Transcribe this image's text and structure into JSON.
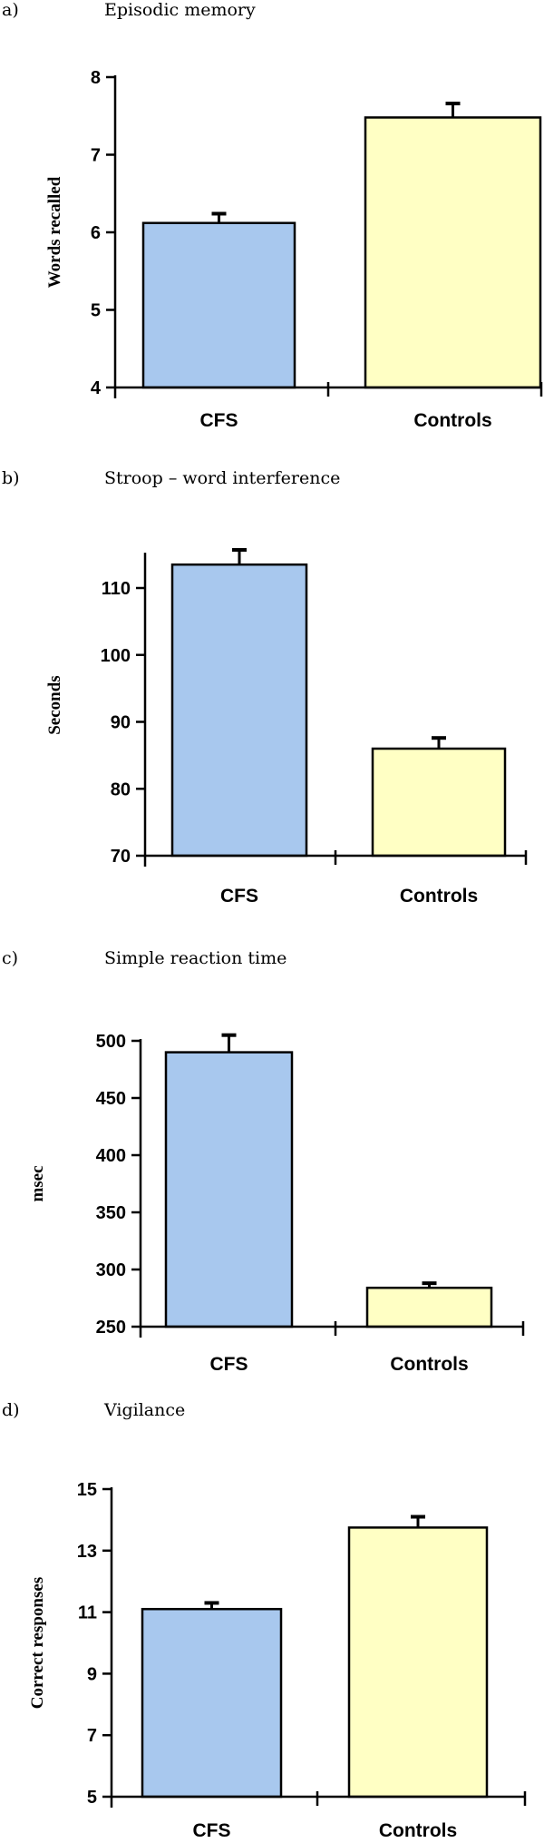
{
  "chart_data": [
    {
      "type": "bar",
      "panel_letter": "a)",
      "title": "Episodic memory",
      "ylabel": "Words recalled",
      "categories": [
        "CFS",
        "Controls"
      ],
      "values": [
        6.12,
        7.48
      ],
      "errors": [
        0.12,
        0.18
      ],
      "ylim": [
        4,
        8
      ],
      "yticks": [
        4,
        5,
        6,
        7,
        8
      ],
      "colors": [
        "#a8c8ee",
        "#ffffc4"
      ]
    },
    {
      "type": "bar",
      "panel_letter": "b)",
      "title": "Stroop – word interference",
      "ylabel": "Seconds",
      "categories": [
        "CFS",
        "Controls"
      ],
      "values": [
        113.5,
        86.0
      ],
      "errors": [
        2.2,
        1.6
      ],
      "ylim": [
        70,
        115
      ],
      "yticks": [
        70,
        80,
        90,
        100,
        110
      ],
      "colors": [
        "#a8c8ee",
        "#ffffc4"
      ]
    },
    {
      "type": "bar",
      "panel_letter": "c)",
      "title": "Simple reaction time",
      "ylabel": "msec",
      "categories": [
        "CFS",
        "Controls"
      ],
      "values": [
        490,
        284
      ],
      "errors": [
        15,
        4
      ],
      "ylim": [
        250,
        500
      ],
      "yticks": [
        250,
        300,
        350,
        400,
        450,
        500
      ],
      "colors": [
        "#a8c8ee",
        "#ffffc4"
      ]
    },
    {
      "type": "bar",
      "panel_letter": "d)",
      "title": "Vigilance",
      "ylabel": "Correct responses",
      "categories": [
        "CFS",
        "Controls"
      ],
      "values": [
        11.1,
        13.75
      ],
      "errors": [
        0.2,
        0.35
      ],
      "ylim": [
        5,
        15
      ],
      "yticks": [
        5,
        7,
        9,
        11,
        13,
        15
      ],
      "colors": [
        "#a8c8ee",
        "#ffffc4"
      ]
    }
  ]
}
